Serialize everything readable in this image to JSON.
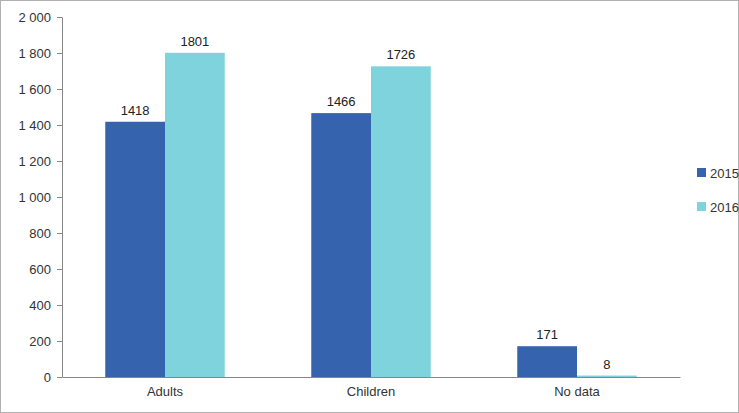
{
  "chart_data": {
    "type": "bar",
    "categories": [
      "Adults",
      "Children",
      "No data"
    ],
    "series": [
      {
        "name": "2015",
        "color": "#3563ae",
        "values": [
          1418,
          1466,
          171
        ]
      },
      {
        "name": "2016",
        "color": "#7fd3dc",
        "values": [
          1801,
          1726,
          8
        ]
      }
    ],
    "ylim": [
      0,
      2000
    ],
    "yticks": [
      0,
      200,
      400,
      600,
      800,
      {
        "value": 1000,
        "label": "1 000"
      },
      {
        "value": 1200,
        "label": "1 200"
      },
      {
        "value": 1400,
        "label": "1 400"
      },
      {
        "value": 1600,
        "label": "1 600"
      },
      {
        "value": 1800,
        "label": "1 800"
      },
      {
        "value": 2000,
        "label": "2 000"
      }
    ],
    "grid": false,
    "legend": "right",
    "data_labels": true
  }
}
